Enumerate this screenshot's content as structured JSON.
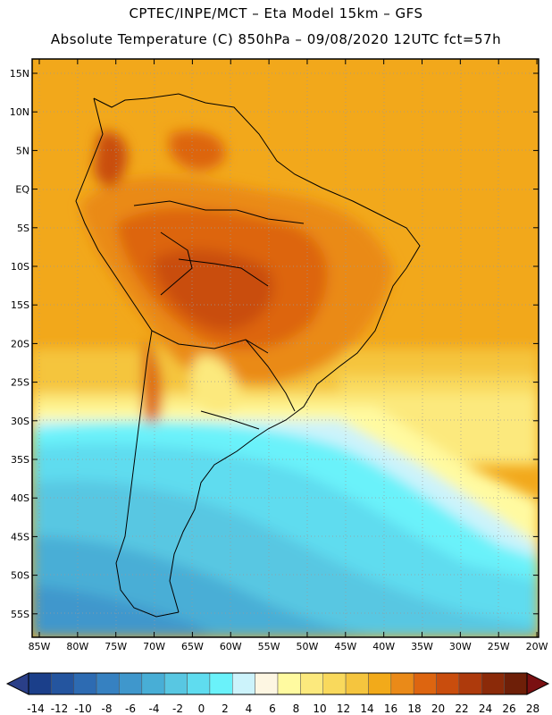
{
  "header": {
    "line1": "CPTEC/INPE/MCT –  Eta Model 15km – GFS",
    "line2": "Absolute Temperature (C) 850hPa – 09/08/2020 12UTC fct=57h"
  },
  "map": {
    "lat_labels": [
      "15N",
      "10N",
      "5N",
      "EQ",
      "5S",
      "10S",
      "15S",
      "20S",
      "25S",
      "30S",
      "35S",
      "40S",
      "45S",
      "50S",
      "55S"
    ],
    "lon_labels": [
      "85W",
      "80W",
      "75W",
      "70W",
      "65W",
      "60W",
      "55W",
      "50W",
      "45W",
      "40W",
      "35W",
      "30W",
      "25W",
      "20W"
    ],
    "field": "temperature-850hPa"
  },
  "colorbar": {
    "labels": [
      "-14",
      "-12",
      "-10",
      "-8",
      "-6",
      "-4",
      "-2",
      "0",
      "2",
      "4",
      "6",
      "8",
      "10",
      "12",
      "14",
      "16",
      "18",
      "20",
      "22",
      "24",
      "26",
      "28"
    ],
    "colors": [
      "#1b3f8a",
      "#24559f",
      "#2d6bb2",
      "#3681c1",
      "#3f97cc",
      "#48aed6",
      "#58c7e2",
      "#5fdcef",
      "#6af2fa",
      "#ccf3fb",
      "#fdf6e2",
      "#fffaa0",
      "#fce97d",
      "#f9d95c",
      "#f5c53e",
      "#f2aa1a",
      "#ea8a18",
      "#dd6510",
      "#c94d0d",
      "#ae3a0c",
      "#8b2a09",
      "#6e1f08"
    ],
    "underflow_color": "#2a3f88",
    "overflow_color": "#7a1012"
  }
}
